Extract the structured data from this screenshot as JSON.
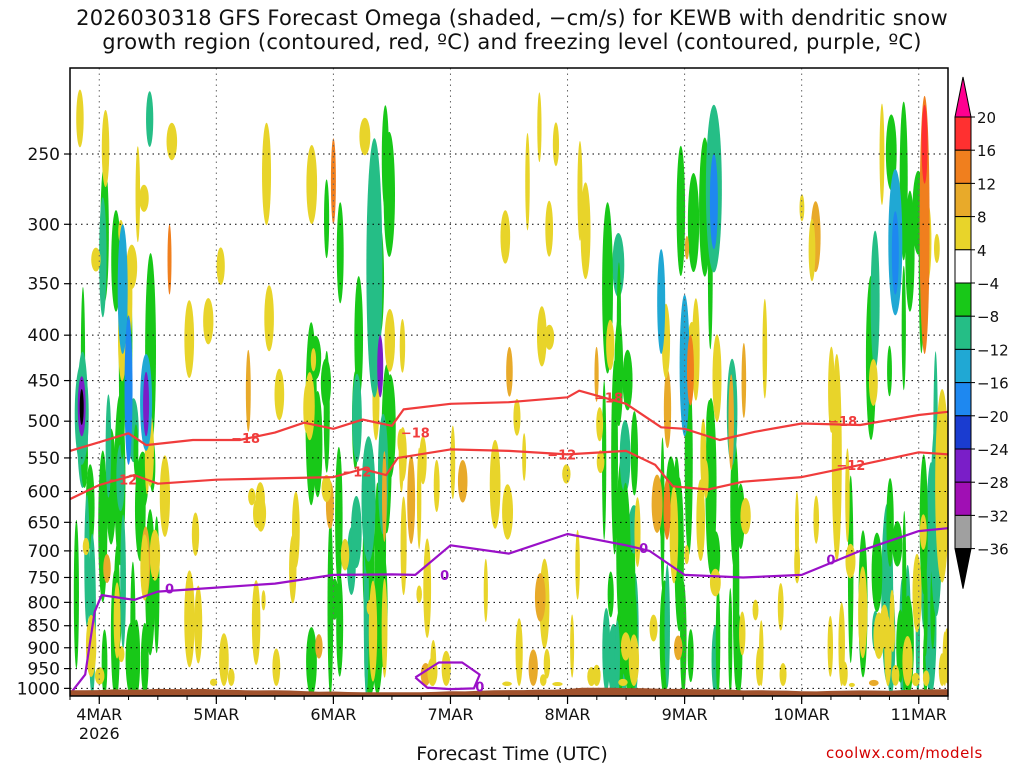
{
  "title": "2026030318 GFS Forecast Omega (shaded, −cm/s) for KEWB with dendritic snow\ngrowth region (contoured, red, ºC) and freezing level (contoured, purple, ºC)",
  "xlabel": "Forecast Time (UTC)",
  "credit": "coolwx.com/models",
  "chart_data": {
    "type": "heatmap",
    "title": "2026030318 GFS Forecast Omega (shaded, −cm/s) for KEWB with dendritic snow growth region (contoured, red, ºC) and freezing level (contoured, purple, ºC)",
    "xlabel": "Forecast Time (UTC)",
    "ylabel": "",
    "x_ticks": [
      "4MAR",
      "5MAR",
      "6MAR",
      "7MAR",
      "8MAR",
      "9MAR",
      "10MAR",
      "11MAR"
    ],
    "x_sublabel": "2026",
    "x_range_days": [
      3.75,
      11.25
    ],
    "y_ticks": [
      250,
      300,
      350,
      400,
      450,
      500,
      550,
      600,
      650,
      700,
      750,
      800,
      850,
      900,
      950,
      1000
    ],
    "y_range": [
      200,
      1020
    ],
    "y_scale": "log-pressure",
    "grid": true,
    "colorbar": {
      "labels": [
        "20",
        "16",
        "12",
        "8",
        "4",
        "−4",
        "−8",
        "−12",
        "−16",
        "−20",
        "−24",
        "−28",
        "−32",
        "−36"
      ],
      "colors": [
        "#ff0090",
        "#ff3030",
        "#f07f1e",
        "#e8aa2a",
        "#e8d42a",
        "#ffffff",
        "#18c818",
        "#25be86",
        "#20a8d4",
        "#1e88f0",
        "#1a3cd0",
        "#7a1ec8",
        "#a00fb4",
        "#a0a0a0",
        "#000000"
      ]
    },
    "contours": [
      {
        "name": "-12",
        "color": "#f03c3c",
        "x": [
          3.75,
          4.0,
          4.3,
          4.5,
          5.0,
          5.5,
          6.0,
          6.25,
          6.45,
          6.55,
          7.0,
          7.5,
          8.0,
          8.5,
          8.75,
          8.9,
          9.2,
          9.5,
          10.0,
          10.5,
          11.0,
          11.25
        ],
        "y": [
          612,
          590,
          575,
          588,
          582,
          580,
          578,
          566,
          575,
          550,
          538,
          540,
          545,
          540,
          560,
          592,
          597,
          585,
          578,
          560,
          542,
          545
        ]
      },
      {
        "name": "-18",
        "color": "#f03c3c",
        "x": [
          3.75,
          4.0,
          4.25,
          4.4,
          4.8,
          5.2,
          5.5,
          5.75,
          6.0,
          6.25,
          6.5,
          6.6,
          7.0,
          7.5,
          8.0,
          8.1,
          8.5,
          8.8,
          9.0,
          9.3,
          9.6,
          10.0,
          10.5,
          11.0,
          11.25
        ],
        "y": [
          540,
          528,
          516,
          532,
          525,
          525,
          515,
          502,
          510,
          498,
          506,
          485,
          478,
          476,
          470,
          462,
          478,
          508,
          510,
          525,
          514,
          503,
          505,
          492,
          488
        ]
      },
      {
        "name": "0",
        "color": "#9a10c8",
        "x": [
          3.75,
          3.88,
          3.96,
          4.02,
          4.3,
          4.5,
          5.0,
          5.5,
          6.0,
          6.5,
          6.7,
          7.0,
          7.5,
          8.0,
          8.5,
          8.7,
          9.0,
          9.5,
          10.0,
          10.5,
          11.0,
          11.25
        ],
        "y": [
          1015,
          965,
          820,
          785,
          795,
          778,
          770,
          762,
          745,
          744,
          745,
          690,
          705,
          670,
          690,
          700,
          745,
          750,
          745,
          700,
          665,
          660
        ]
      },
      {
        "name": "0",
        "color": "#9a10c8",
        "x": [
          6.7,
          6.9,
          7.1,
          7.25,
          7.2,
          7.0,
          6.8,
          6.7
        ],
        "y": [
          972,
          935,
          935,
          965,
          1000,
          1002,
          998,
          972
        ]
      }
    ],
    "omega_features": [
      {
        "level": "−36",
        "x": 3.85,
        "p_top": 445,
        "p_bottom": 520
      },
      {
        "level": "−28",
        "x": 4.4,
        "p_top": 420,
        "p_bottom": 540
      },
      {
        "level": "−24",
        "x": 6.4,
        "p_top": 400,
        "p_bottom": 470
      },
      {
        "level": "−20",
        "x": 9.25,
        "p_top": 250,
        "p_bottom": 320
      },
      {
        "level": "−20",
        "x": 10.8,
        "p_top": 290,
        "p_bottom": 360
      },
      {
        "level": "16",
        "x": 11.05,
        "p_top": 220,
        "p_bottom": 270
      },
      {
        "level": "12",
        "x": 9.05,
        "p_top": 400,
        "p_bottom": 480
      },
      {
        "level": "12",
        "x": 8.85,
        "p_top": 580,
        "p_bottom": 680
      }
    ],
    "contour_labels": [
      "−18",
      "−12",
      "0"
    ]
  }
}
